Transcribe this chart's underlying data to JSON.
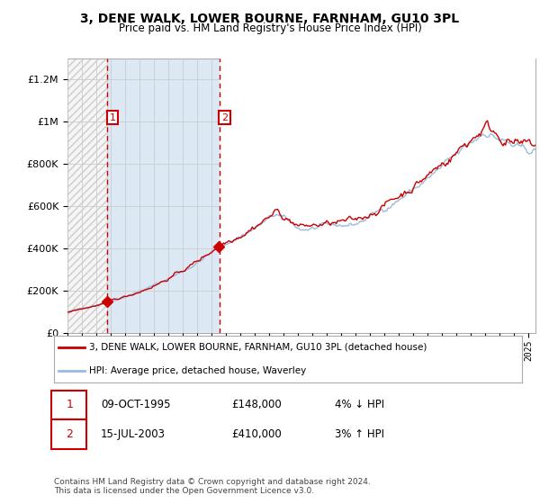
{
  "title": "3, DENE WALK, LOWER BOURNE, FARNHAM, GU10 3PL",
  "subtitle": "Price paid vs. HM Land Registry's House Price Index (HPI)",
  "legend_line1": "3, DENE WALK, LOWER BOURNE, FARNHAM, GU10 3PL (detached house)",
  "legend_line2": "HPI: Average price, detached house, Waverley",
  "purchase1_date": "09-OCT-1995",
  "purchase1_price": 148000,
  "purchase1_label": "4% ↓ HPI",
  "purchase1_year": 1995.77,
  "purchase2_date": "15-JUL-2003",
  "purchase2_price": 410000,
  "purchase2_label": "3% ↑ HPI",
  "purchase2_year": 2003.54,
  "footnote": "Contains HM Land Registry data © Crown copyright and database right 2024.\nThis data is licensed under the Open Government Licence v3.0.",
  "span_color": "#dce9f5",
  "grid_color": "#cccccc",
  "red_color": "#cc0000",
  "blue_color": "#99bbdd",
  "ylim_max": 1300000,
  "xlim_start": 1993.0,
  "xlim_end": 2025.5,
  "seed": 42
}
